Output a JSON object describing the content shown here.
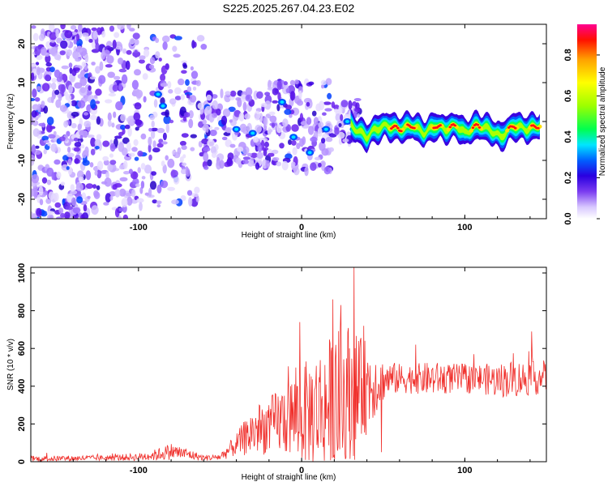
{
  "chart_data": [
    {
      "type": "heatmap",
      "title": "S225.2025.267.04.23.E02",
      "xlabel": "Height of straight line (km)",
      "ylabel": "Frequency (Hz)",
      "xlim": [
        -166,
        150
      ],
      "ylim": [
        -25,
        25
      ],
      "x_ticks": [
        -100,
        0,
        100
      ],
      "y_ticks": [
        -20,
        -10,
        0,
        10,
        20
      ],
      "colorbar": {
        "label": "Normalized spectral amplitude",
        "range": [
          0,
          0.95
        ],
        "ticks": [
          0.0,
          0.2,
          0.4,
          0.6,
          0.8
        ],
        "stops": [
          "#ffffff",
          "#9b6cff",
          "#3a00e0",
          "#0058ff",
          "#00e5ff",
          "#00ff40",
          "#aaff00",
          "#ffff00",
          "#ffa000",
          "#ff0000",
          "#ff0080"
        ]
      },
      "ridge": {
        "description_points_x": [
          30,
          40,
          45,
          52,
          60,
          68,
          75,
          82,
          88,
          95,
          100,
          108,
          115,
          122,
          130,
          138,
          146
        ],
        "description_points_y": [
          -1,
          -4,
          -2,
          -1,
          -2,
          -1,
          -3,
          -1,
          -2,
          -1,
          -3,
          -1,
          -2,
          -4,
          -1,
          -2,
          -1
        ]
      }
    },
    {
      "type": "line",
      "title": "",
      "xlabel": "Height of straight line (km)",
      "ylabel": "SNR (10 * v/v)",
      "xlim": [
        -166,
        150
      ],
      "ylim": [
        0,
        1030
      ],
      "x_ticks": [
        -100,
        0,
        100
      ],
      "y_ticks": [
        0,
        200,
        400,
        600,
        800,
        1000
      ],
      "series": [
        {
          "name": "SNR",
          "color": "#f0302c",
          "envelope_x": [
            -166,
            -120,
            -100,
            -90,
            -80,
            -70,
            -60,
            -50,
            -40,
            -30,
            -20,
            -10,
            0,
            10,
            20,
            25,
            30,
            35,
            40,
            45,
            50,
            55,
            60,
            70,
            80,
            90,
            100,
            110,
            120,
            130,
            140,
            150
          ],
          "baseline": [
            15,
            20,
            25,
            35,
            55,
            40,
            20,
            25,
            90,
            160,
            190,
            230,
            250,
            280,
            310,
            320,
            350,
            360,
            400,
            420,
            430,
            440,
            440,
            440,
            440,
            440,
            440,
            440,
            430,
            440,
            440,
            450
          ],
          "spread": [
            15,
            15,
            20,
            30,
            45,
            30,
            15,
            20,
            60,
            130,
            150,
            200,
            260,
            320,
            380,
            420,
            400,
            300,
            250,
            180,
            110,
            90,
            80,
            80,
            90,
            80,
            80,
            80,
            90,
            100,
            90,
            90
          ],
          "peaks": [
            {
              "x": -1,
              "y": 740
            },
            {
              "x": 19,
              "y": 860
            },
            {
              "x": 24,
              "y": 830
            },
            {
              "x": 32,
              "y": 1030
            },
            {
              "x": 38,
              "y": 720
            },
            {
              "x": 49,
              "y": 50
            },
            {
              "x": 70,
              "y": 620
            },
            {
              "x": 141,
              "y": 690
            },
            {
              "x": 150,
              "y": 560
            }
          ]
        }
      ]
    }
  ]
}
